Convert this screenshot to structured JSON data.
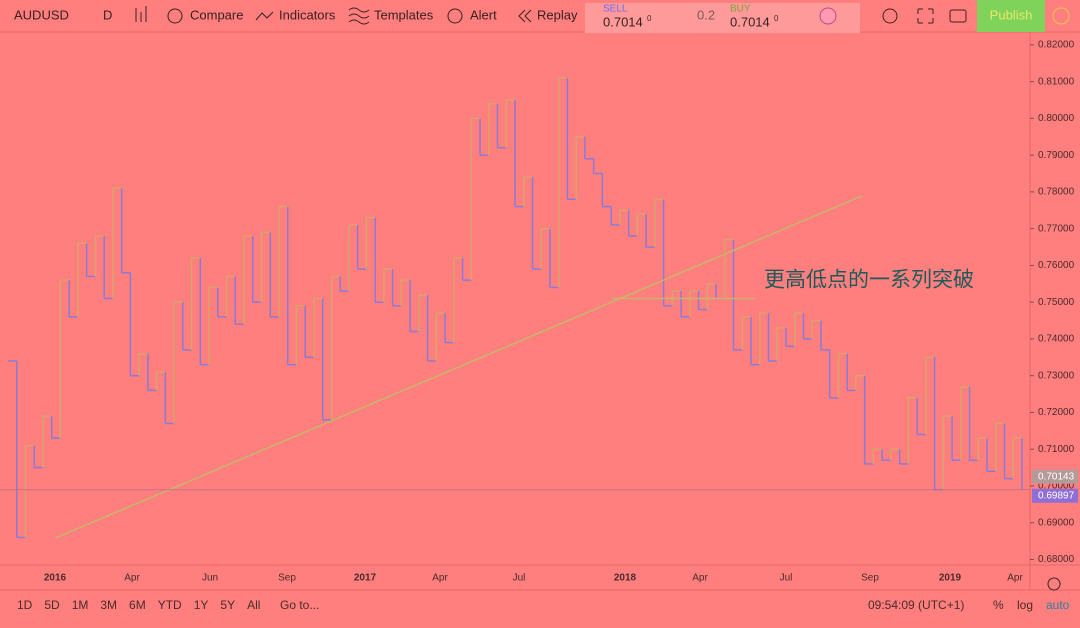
{
  "toolbar": {
    "symbol": "AUDUSD",
    "interval": "D",
    "buttons": [
      "Compare",
      "Indicators",
      "Templates",
      "Alert",
      "Replay"
    ],
    "sell_label": "SELL",
    "sell_price": "0.7014",
    "sell_pip": "0",
    "spread": "0.2",
    "buy_label": "BUY",
    "buy_price": "0.7014",
    "buy_pip": "0",
    "publish": "Publish"
  },
  "chart_data": {
    "type": "kagi",
    "annotation": "更高低点的一系列突破",
    "ylim": [
      0.6785,
      0.8235
    ],
    "yticks": [
      {
        "value": 0.68,
        "label": "0.68000"
      },
      {
        "value": 0.69,
        "label": "0.69000"
      },
      {
        "value": 0.7,
        "label": "0.70000"
      },
      {
        "value": 0.71,
        "label": "0.71000"
      },
      {
        "value": 0.72,
        "label": "0.72000"
      },
      {
        "value": 0.73,
        "label": "0.73000"
      },
      {
        "value": 0.74,
        "label": "0.74000"
      },
      {
        "value": 0.75,
        "label": "0.75000"
      },
      {
        "value": 0.76,
        "label": "0.76000"
      },
      {
        "value": 0.77,
        "label": "0.77000"
      },
      {
        "value": 0.78,
        "label": "0.78000"
      },
      {
        "value": 0.79,
        "label": "0.79000"
      },
      {
        "value": 0.8,
        "label": "0.80000"
      },
      {
        "value": 0.81,
        "label": "0.81000"
      },
      {
        "value": 0.82,
        "label": "0.82000"
      }
    ],
    "xticks": [
      "2016",
      "Apr",
      "Jun",
      "Sep",
      "2017",
      "Apr",
      "Jul",
      "2018",
      "Apr",
      "Jul",
      "Sep",
      "2019",
      "Apr"
    ],
    "up_color": "#d9a36a",
    "down_color": "#8a7ad6",
    "series": [
      {
        "name": "AUDUSD",
        "values": [
          0.734,
          0.686,
          0.711,
          0.705,
          0.719,
          0.713,
          0.756,
          0.746,
          0.766,
          0.757,
          0.768,
          0.751,
          0.781,
          0.758,
          0.73,
          0.736,
          0.726,
          0.731,
          0.717,
          0.75,
          0.737,
          0.762,
          0.733,
          0.754,
          0.746,
          0.757,
          0.744,
          0.768,
          0.75,
          0.769,
          0.746,
          0.776,
          0.733,
          0.749,
          0.735,
          0.751,
          0.718,
          0.757,
          0.753,
          0.771,
          0.759,
          0.773,
          0.75,
          0.759,
          0.749,
          0.756,
          0.742,
          0.752,
          0.734,
          0.747,
          0.739,
          0.762,
          0.756,
          0.8,
          0.79,
          0.804,
          0.792,
          0.805,
          0.776,
          0.784,
          0.759,
          0.77,
          0.754,
          0.811,
          0.778,
          0.795,
          0.789,
          0.785,
          0.776,
          0.771,
          0.775,
          0.768,
          0.774,
          0.765,
          0.778,
          0.749,
          0.753,
          0.746,
          0.753,
          0.748,
          0.755,
          0.751,
          0.767,
          0.737,
          0.746,
          0.733,
          0.747,
          0.734,
          0.743,
          0.738,
          0.747,
          0.74,
          0.745,
          0.737,
          0.724,
          0.736,
          0.726,
          0.73,
          0.706,
          0.71,
          0.707,
          0.71,
          0.706,
          0.724,
          0.714,
          0.735,
          0.699,
          0.719,
          0.707,
          0.727,
          0.707,
          0.713,
          0.704,
          0.717,
          0.702,
          0.713,
          0.699
        ]
      }
    ],
    "trend_line": {
      "values": [
        0.6858,
        0.7789
      ],
      "color": "#c9b46a"
    },
    "breakout_level": {
      "value": 0.751,
      "color": "#c9b46a"
    },
    "price_labels": [
      {
        "value": 0.70143,
        "label": "0.70143",
        "color": "#b59a9a"
      },
      {
        "value": 0.69897,
        "label": "0.69897",
        "color": "#8f6fd6"
      }
    ]
  },
  "footer": {
    "ranges": [
      "1D",
      "5D",
      "1M",
      "3M",
      "6M",
      "YTD",
      "1Y",
      "5Y",
      "All"
    ],
    "goto": "Go to...",
    "time": "09:54:09 (UTC+1)",
    "percent": "%",
    "log": "log",
    "auto": "auto"
  }
}
